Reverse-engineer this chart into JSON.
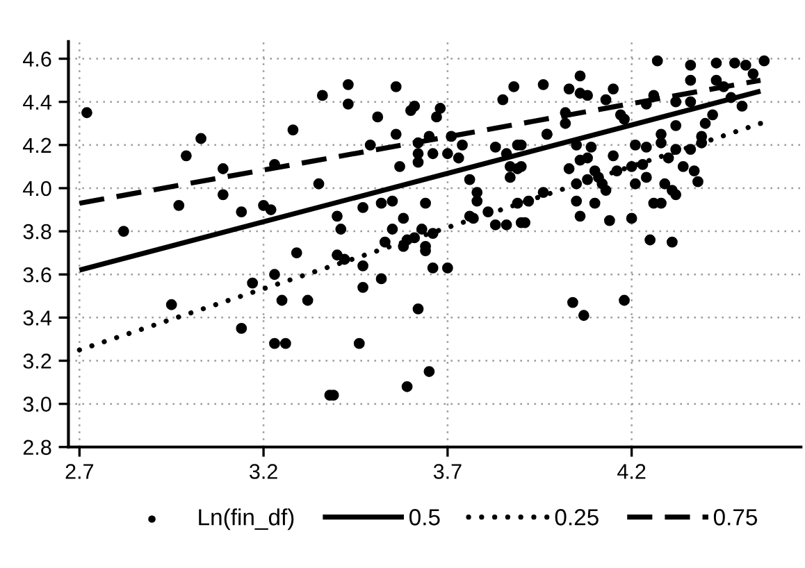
{
  "chart_data": {
    "type": "scatter",
    "xlim": [
      2.67,
      4.66
    ],
    "ylim": [
      2.8,
      4.68
    ],
    "xticks": [
      2.7,
      3.2,
      3.7,
      4.2
    ],
    "yticks": [
      {
        "value": 2.8,
        "label": "2.8"
      },
      {
        "value": 3.0,
        "label": "3.0"
      },
      {
        "value": 3.2,
        "label": "3.2"
      },
      {
        "value": 3.4,
        "label": "3.4"
      },
      {
        "value": 3.6,
        "label": "3.6"
      },
      {
        "value": 3.8,
        "label": "3.8"
      },
      {
        "value": 4.0,
        "label": "4.0"
      },
      {
        "value": 4.2,
        "label": "4.2"
      },
      {
        "value": 4.4,
        "label": "4.4"
      },
      {
        "value": 4.6,
        "label": "4.6"
      }
    ],
    "grid": true,
    "legend": "bottom",
    "series": [
      {
        "name": "Ln(fin_df)",
        "marker": "circle",
        "color": "#000000",
        "x": [
          2.72,
          2.82,
          2.99,
          3.03,
          2.97,
          3.09,
          3.09,
          3.14,
          3.2,
          3.22,
          3.23,
          3.28,
          3.36,
          3.35,
          3.29,
          3.23,
          3.17,
          2.95,
          3.14,
          3.25,
          3.32,
          3.23,
          3.26,
          3.38,
          3.43,
          3.43,
          3.56,
          3.51,
          3.61,
          3.6,
          3.68,
          3.67,
          3.56,
          3.49,
          3.57,
          3.62,
          3.62,
          3.62,
          3.65,
          3.66,
          3.7,
          3.71,
          3.74,
          3.73,
          3.83,
          3.86,
          3.89,
          3.85,
          3.88,
          3.96,
          3.97,
          3.89,
          3.87,
          3.76,
          3.78,
          3.78,
          3.47,
          3.52,
          3.55,
          3.64,
          3.4,
          3.41,
          3.58,
          3.55,
          3.63,
          3.53,
          3.58,
          3.59,
          3.61,
          3.64,
          3.64,
          3.66,
          3.4,
          3.42,
          3.47,
          3.52,
          3.47,
          3.66,
          3.7,
          3.62,
          3.46,
          3.65,
          3.59,
          3.39,
          3.76,
          3.77,
          3.81,
          3.83,
          3.86,
          3.91,
          3.92,
          3.87,
          3.96,
          4.27,
          4.36,
          4.36,
          4.43,
          4.48,
          4.56,
          4.51,
          4.53,
          4.06,
          4.03,
          4.06,
          4.08,
          4.15,
          4.13,
          4.02,
          4.02,
          4.17,
          4.18,
          4.24,
          4.26,
          4.32,
          4.36,
          4.43,
          4.45,
          4.47,
          4.5,
          4.32,
          4.4,
          4.42,
          3.97,
          3.9,
          4.05,
          4.09,
          4.15,
          4.21,
          4.24,
          4.28,
          4.28,
          4.32,
          4.3,
          4.36,
          4.39,
          4.39,
          3.9,
          4.03,
          4.06,
          4.08,
          4.1,
          4.11,
          4.16,
          4.2,
          4.23,
          4.12,
          4.13,
          4.08,
          4.05,
          4.21,
          4.24,
          4.34,
          4.37,
          4.38,
          4.29,
          4.31,
          4.32,
          3.89,
          4.05,
          4.1,
          4.26,
          4.28,
          4.06,
          4.14,
          4.2,
          3.9,
          4.25,
          4.31,
          4.04,
          4.07,
          4.18
        ],
        "values": [
          4.35,
          3.8,
          4.15,
          4.23,
          3.92,
          4.09,
          3.97,
          3.89,
          3.92,
          3.9,
          4.11,
          4.27,
          4.43,
          4.02,
          3.7,
          3.6,
          3.56,
          3.46,
          3.35,
          3.48,
          3.48,
          3.28,
          3.28,
          3.04,
          4.48,
          4.39,
          4.47,
          4.33,
          4.38,
          4.36,
          4.37,
          4.33,
          4.25,
          4.2,
          4.1,
          4.21,
          4.16,
          4.12,
          4.24,
          4.16,
          4.16,
          4.24,
          4.2,
          4.14,
          4.19,
          4.16,
          4.2,
          4.41,
          4.47,
          4.48,
          4.25,
          4.09,
          4.05,
          4.04,
          3.98,
          3.94,
          3.91,
          3.93,
          3.94,
          3.93,
          3.87,
          3.81,
          3.86,
          3.81,
          3.81,
          3.75,
          3.73,
          3.76,
          3.77,
          3.73,
          3.71,
          3.79,
          3.69,
          3.67,
          3.64,
          3.58,
          3.54,
          3.63,
          3.63,
          3.44,
          3.28,
          3.15,
          3.08,
          3.04,
          3.87,
          3.86,
          3.89,
          3.83,
          3.83,
          3.84,
          3.94,
          4.1,
          3.98,
          4.59,
          4.57,
          4.5,
          4.58,
          4.58,
          4.59,
          4.57,
          4.53,
          4.52,
          4.46,
          4.44,
          4.43,
          4.46,
          4.41,
          4.35,
          4.3,
          4.34,
          4.32,
          4.39,
          4.43,
          4.4,
          4.4,
          4.5,
          4.47,
          4.42,
          4.38,
          4.29,
          4.3,
          4.34,
          4.25,
          4.2,
          4.2,
          4.19,
          4.15,
          4.2,
          4.19,
          4.25,
          4.21,
          4.18,
          4.14,
          4.18,
          4.24,
          4.21,
          4.1,
          4.09,
          4.13,
          4.14,
          4.08,
          4.05,
          4.08,
          4.1,
          4.11,
          4.02,
          3.99,
          4.04,
          4.02,
          4.02,
          4.05,
          4.1,
          4.08,
          4.03,
          4.02,
          3.99,
          3.97,
          3.93,
          3.94,
          3.93,
          3.93,
          3.93,
          3.87,
          3.85,
          3.86,
          3.84,
          3.76,
          3.75,
          3.47,
          3.41,
          3.48
        ]
      },
      {
        "name": "0.5",
        "type": "line",
        "line_style": "solid",
        "color": "#000000",
        "x": [
          2.7,
          4.55
        ],
        "values": [
          3.62,
          4.45
        ]
      },
      {
        "name": "0.25",
        "type": "line",
        "line_style": "dotted",
        "color": "#000000",
        "x": [
          2.7,
          4.55
        ],
        "values": [
          3.25,
          4.3
        ]
      },
      {
        "name": "0.75",
        "type": "line",
        "line_style": "dashed",
        "color": "#000000",
        "x": [
          2.7,
          4.55
        ],
        "values": [
          3.93,
          4.5
        ]
      }
    ]
  }
}
